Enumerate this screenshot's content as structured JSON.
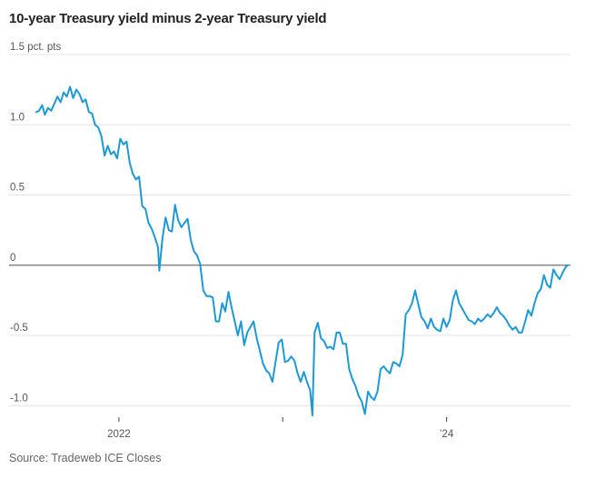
{
  "title": "10-year Treasury yield minus 2-year Treasury yield",
  "source": "Source: Tradeweb ICE Closes",
  "chart_data": {
    "type": "line",
    "title": "10-year Treasury yield minus 2-year Treasury yield",
    "ylabel": "",
    "xlabel": "",
    "ylim": [
      -1.1,
      1.5
    ],
    "xlim": [
      "2021-07-01",
      "2024-09-27"
    ],
    "yticks": [
      {
        "value": 1.5,
        "label": "1.5 pct. pts"
      },
      {
        "value": 1.0,
        "label": "1.0"
      },
      {
        "value": 0.5,
        "label": "0.5"
      },
      {
        "value": 0,
        "label": "0"
      },
      {
        "value": -0.5,
        "label": "-0.5"
      },
      {
        "value": -1.0,
        "label": "-1.0"
      }
    ],
    "xticks": [
      {
        "value": "2022-01-01",
        "label": "2022"
      },
      {
        "value": "2023-01-01",
        "label": ""
      },
      {
        "value": "2024-01-01",
        "label": "’24"
      }
    ],
    "grid": true,
    "series": [
      {
        "color": "#1d9ad6",
        "points": [
          [
            "2021-07-01",
            1.09
          ],
          [
            "2021-07-07",
            1.1
          ],
          [
            "2021-07-14",
            1.14
          ],
          [
            "2021-07-20",
            1.07
          ],
          [
            "2021-07-27",
            1.12
          ],
          [
            "2021-08-03",
            1.1
          ],
          [
            "2021-08-10",
            1.15
          ],
          [
            "2021-08-17",
            1.2
          ],
          [
            "2021-08-24",
            1.16
          ],
          [
            "2021-08-31",
            1.23
          ],
          [
            "2021-09-07",
            1.2
          ],
          [
            "2021-09-14",
            1.27
          ],
          [
            "2021-09-21",
            1.19
          ],
          [
            "2021-09-28",
            1.25
          ],
          [
            "2021-10-05",
            1.22
          ],
          [
            "2021-10-12",
            1.16
          ],
          [
            "2021-10-19",
            1.18
          ],
          [
            "2021-10-26",
            1.09
          ],
          [
            "2021-11-02",
            1.08
          ],
          [
            "2021-11-09",
            1.0
          ],
          [
            "2021-11-16",
            0.98
          ],
          [
            "2021-11-23",
            0.92
          ],
          [
            "2021-11-30",
            0.78
          ],
          [
            "2021-12-07",
            0.85
          ],
          [
            "2021-12-14",
            0.79
          ],
          [
            "2021-12-21",
            0.81
          ],
          [
            "2021-12-28",
            0.76
          ],
          [
            "2022-01-04",
            0.9
          ],
          [
            "2022-01-11",
            0.86
          ],
          [
            "2022-01-18",
            0.88
          ],
          [
            "2022-01-25",
            0.73
          ],
          [
            "2022-02-01",
            0.65
          ],
          [
            "2022-02-08",
            0.61
          ],
          [
            "2022-02-15",
            0.63
          ],
          [
            "2022-02-22",
            0.42
          ],
          [
            "2022-03-01",
            0.4
          ],
          [
            "2022-03-08",
            0.3
          ],
          [
            "2022-03-15",
            0.26
          ],
          [
            "2022-03-22",
            0.2
          ],
          [
            "2022-03-29",
            0.13
          ],
          [
            "2022-04-01",
            -0.04
          ],
          [
            "2022-04-08",
            0.19
          ],
          [
            "2022-04-15",
            0.34
          ],
          [
            "2022-04-22",
            0.25
          ],
          [
            "2022-04-29",
            0.24
          ],
          [
            "2022-05-06",
            0.43
          ],
          [
            "2022-05-13",
            0.32
          ],
          [
            "2022-05-20",
            0.27
          ],
          [
            "2022-05-27",
            0.3
          ],
          [
            "2022-06-03",
            0.33
          ],
          [
            "2022-06-10",
            0.18
          ],
          [
            "2022-06-17",
            0.1
          ],
          [
            "2022-06-24",
            0.07
          ],
          [
            "2022-07-01",
            0.01
          ],
          [
            "2022-07-08",
            -0.18
          ],
          [
            "2022-07-15",
            -0.22
          ],
          [
            "2022-07-22",
            -0.22
          ],
          [
            "2022-07-29",
            -0.23
          ],
          [
            "2022-08-05",
            -0.4
          ],
          [
            "2022-08-12",
            -0.4
          ],
          [
            "2022-08-19",
            -0.27
          ],
          [
            "2022-08-26",
            -0.33
          ],
          [
            "2022-09-02",
            -0.19
          ],
          [
            "2022-09-09",
            -0.3
          ],
          [
            "2022-09-16",
            -0.4
          ],
          [
            "2022-09-23",
            -0.5
          ],
          [
            "2022-09-30",
            -0.4
          ],
          [
            "2022-10-07",
            -0.57
          ],
          [
            "2022-10-14",
            -0.48
          ],
          [
            "2022-10-21",
            -0.44
          ],
          [
            "2022-10-28",
            -0.4
          ],
          [
            "2022-11-04",
            -0.52
          ],
          [
            "2022-11-11",
            -0.61
          ],
          [
            "2022-11-18",
            -0.7
          ],
          [
            "2022-11-25",
            -0.75
          ],
          [
            "2022-12-02",
            -0.77
          ],
          [
            "2022-12-09",
            -0.83
          ],
          [
            "2022-12-16",
            -0.69
          ],
          [
            "2022-12-23",
            -0.55
          ],
          [
            "2022-12-30",
            -0.53
          ],
          [
            "2023-01-06",
            -0.69
          ],
          [
            "2023-01-13",
            -0.68
          ],
          [
            "2023-01-20",
            -0.65
          ],
          [
            "2023-01-27",
            -0.68
          ],
          [
            "2023-02-03",
            -0.77
          ],
          [
            "2023-02-10",
            -0.83
          ],
          [
            "2023-02-17",
            -0.76
          ],
          [
            "2023-02-24",
            -0.83
          ],
          [
            "2023-03-03",
            -0.89
          ],
          [
            "2023-03-08",
            -1.07
          ],
          [
            "2023-03-13",
            -0.48
          ],
          [
            "2023-03-20",
            -0.41
          ],
          [
            "2023-03-27",
            -0.52
          ],
          [
            "2023-04-03",
            -0.54
          ],
          [
            "2023-04-10",
            -0.59
          ],
          [
            "2023-04-17",
            -0.58
          ],
          [
            "2023-04-24",
            -0.6
          ],
          [
            "2023-05-01",
            -0.48
          ],
          [
            "2023-05-08",
            -0.48
          ],
          [
            "2023-05-15",
            -0.56
          ],
          [
            "2023-05-22",
            -0.56
          ],
          [
            "2023-05-29",
            -0.74
          ],
          [
            "2023-06-05",
            -0.81
          ],
          [
            "2023-06-12",
            -0.86
          ],
          [
            "2023-06-19",
            -0.93
          ],
          [
            "2023-06-26",
            -0.97
          ],
          [
            "2023-07-03",
            -1.06
          ],
          [
            "2023-07-10",
            -0.9
          ],
          [
            "2023-07-17",
            -0.94
          ],
          [
            "2023-07-24",
            -0.96
          ],
          [
            "2023-07-31",
            -0.9
          ],
          [
            "2023-08-07",
            -0.74
          ],
          [
            "2023-08-14",
            -0.72
          ],
          [
            "2023-08-21",
            -0.75
          ],
          [
            "2023-08-28",
            -0.77
          ],
          [
            "2023-09-04",
            -0.69
          ],
          [
            "2023-09-11",
            -0.7
          ],
          [
            "2023-09-18",
            -0.72
          ],
          [
            "2023-09-25",
            -0.64
          ],
          [
            "2023-10-02",
            -0.35
          ],
          [
            "2023-10-09",
            -0.32
          ],
          [
            "2023-10-16",
            -0.27
          ],
          [
            "2023-10-23",
            -0.18
          ],
          [
            "2023-10-30",
            -0.28
          ],
          [
            "2023-11-06",
            -0.37
          ],
          [
            "2023-11-13",
            -0.4
          ],
          [
            "2023-11-20",
            -0.45
          ],
          [
            "2023-11-27",
            -0.38
          ],
          [
            "2023-12-04",
            -0.44
          ],
          [
            "2023-12-11",
            -0.46
          ],
          [
            "2023-12-18",
            -0.47
          ],
          [
            "2023-12-25",
            -0.38
          ],
          [
            "2024-01-01",
            -0.44
          ],
          [
            "2024-01-08",
            -0.39
          ],
          [
            "2024-01-15",
            -0.25
          ],
          [
            "2024-01-22",
            -0.18
          ],
          [
            "2024-01-29",
            -0.27
          ],
          [
            "2024-02-05",
            -0.31
          ],
          [
            "2024-02-12",
            -0.35
          ],
          [
            "2024-02-19",
            -0.39
          ],
          [
            "2024-02-26",
            -0.4
          ],
          [
            "2024-03-04",
            -0.42
          ],
          [
            "2024-03-11",
            -0.38
          ],
          [
            "2024-03-18",
            -0.4
          ],
          [
            "2024-03-25",
            -0.38
          ],
          [
            "2024-04-01",
            -0.35
          ],
          [
            "2024-04-08",
            -0.37
          ],
          [
            "2024-04-15",
            -0.34
          ],
          [
            "2024-04-22",
            -0.3
          ],
          [
            "2024-04-29",
            -0.34
          ],
          [
            "2024-05-06",
            -0.36
          ],
          [
            "2024-05-13",
            -0.39
          ],
          [
            "2024-05-20",
            -0.43
          ],
          [
            "2024-05-27",
            -0.46
          ],
          [
            "2024-06-03",
            -0.44
          ],
          [
            "2024-06-10",
            -0.48
          ],
          [
            "2024-06-17",
            -0.48
          ],
          [
            "2024-06-24",
            -0.4
          ],
          [
            "2024-07-01",
            -0.32
          ],
          [
            "2024-07-08",
            -0.36
          ],
          [
            "2024-07-15",
            -0.27
          ],
          [
            "2024-07-22",
            -0.2
          ],
          [
            "2024-07-29",
            -0.17
          ],
          [
            "2024-08-05",
            -0.07
          ],
          [
            "2024-08-12",
            -0.14
          ],
          [
            "2024-08-19",
            -0.16
          ],
          [
            "2024-08-26",
            -0.03
          ],
          [
            "2024-09-02",
            -0.07
          ],
          [
            "2024-09-09",
            -0.1
          ],
          [
            "2024-09-16",
            -0.05
          ],
          [
            "2024-09-23",
            -0.01
          ],
          [
            "2024-09-27",
            0.0
          ]
        ]
      }
    ]
  }
}
